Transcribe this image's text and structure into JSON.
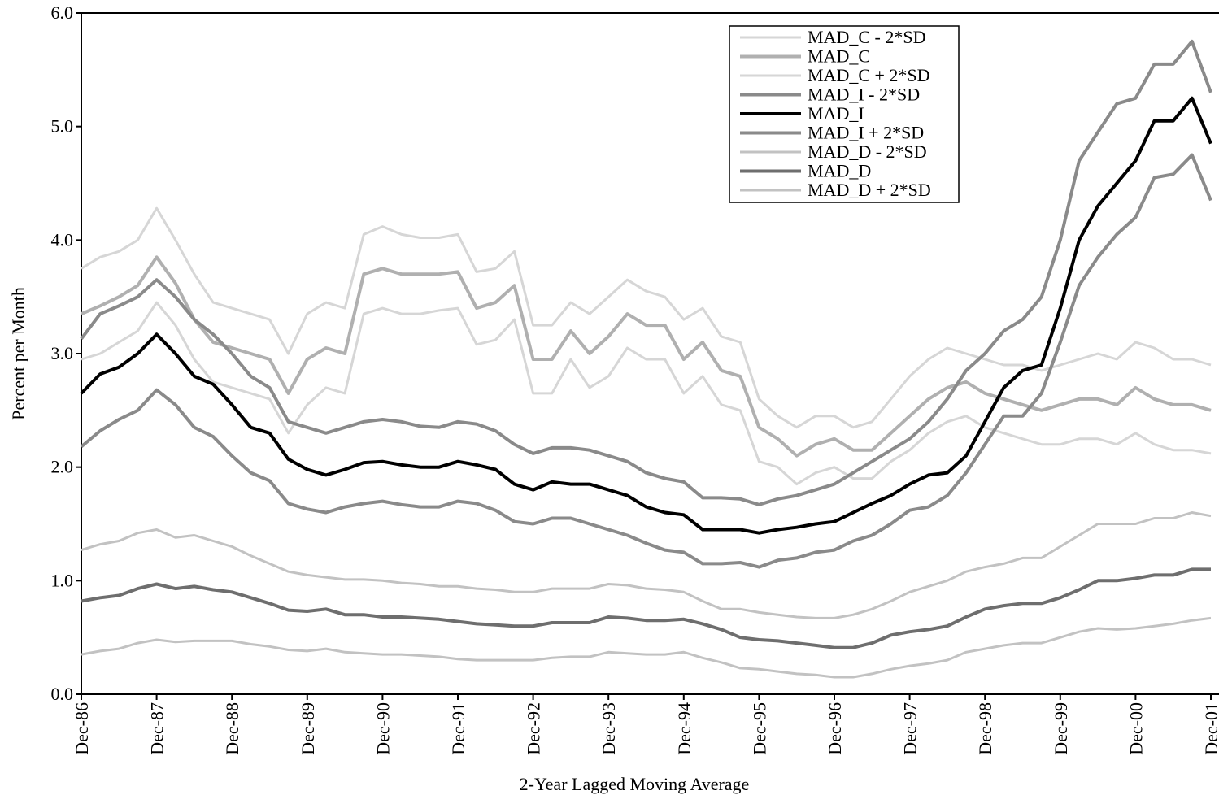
{
  "chart_data": {
    "type": "line",
    "x_label": "2-Year Lagged Moving Average",
    "y_label": "Percent per Month",
    "categories": [
      "Dec-86",
      null,
      null,
      null,
      "Dec-87",
      null,
      null,
      null,
      "Dec-88",
      null,
      null,
      null,
      "Dec-89",
      null,
      null,
      null,
      "Dec-90",
      null,
      null,
      null,
      "Dec-91",
      null,
      null,
      null,
      "Dec-92",
      null,
      null,
      null,
      "Dec-93",
      null,
      null,
      null,
      "Dec-94",
      null,
      null,
      null,
      "Dec-95",
      null,
      null,
      null,
      "Dec-96",
      null,
      null,
      null,
      "Dec-97",
      null,
      null,
      null,
      "Dec-98",
      null,
      null,
      null,
      "Dec-99",
      null,
      null,
      null,
      "Dec-00",
      null,
      null,
      null,
      "Dec-01"
    ],
    "ylim": [
      0,
      6
    ],
    "yticks": [
      {
        "value": 0,
        "label": "0.0"
      },
      {
        "value": 1,
        "label": "1.0"
      },
      {
        "value": 2,
        "label": "2.0"
      },
      {
        "value": 3,
        "label": "3.0"
      },
      {
        "value": 4,
        "label": "4.0"
      },
      {
        "value": 5,
        "label": "5.0"
      },
      {
        "value": 6,
        "label": "6.0"
      }
    ],
    "legend": "top-right",
    "series": [
      {
        "name": "MAD_C - 2*SD",
        "color": "#d6d6d6",
        "values": [
          2.95,
          3.0,
          3.1,
          3.2,
          3.45,
          3.25,
          2.95,
          2.75,
          2.7,
          2.65,
          2.6,
          2.3,
          2.55,
          2.7,
          2.65,
          3.35,
          3.4,
          3.35,
          3.35,
          3.38,
          3.4,
          3.08,
          3.12,
          3.3,
          2.65,
          2.65,
          2.95,
          2.7,
          2.8,
          3.05,
          2.95,
          2.95,
          2.65,
          2.8,
          2.55,
          2.5,
          2.05,
          2.0,
          1.85,
          1.95,
          2.0,
          1.9,
          1.9,
          2.05,
          2.15,
          2.3,
          2.4,
          2.45,
          2.35,
          2.3,
          2.25,
          2.2,
          2.2,
          2.25,
          2.25,
          2.2,
          2.3,
          2.2,
          2.15,
          2.15,
          2.12
        ]
      },
      {
        "name": "MAD_C",
        "color": "#b0b0b0",
        "values": [
          3.35,
          3.42,
          3.5,
          3.6,
          3.85,
          3.62,
          3.3,
          3.1,
          3.05,
          3.0,
          2.95,
          2.65,
          2.95,
          3.05,
          3.0,
          3.7,
          3.75,
          3.7,
          3.7,
          3.7,
          3.72,
          3.4,
          3.45,
          3.6,
          2.95,
          2.95,
          3.2,
          3.0,
          3.15,
          3.35,
          3.25,
          3.25,
          2.95,
          3.1,
          2.85,
          2.8,
          2.35,
          2.25,
          2.1,
          2.2,
          2.25,
          2.15,
          2.15,
          2.3,
          2.45,
          2.6,
          2.7,
          2.75,
          2.65,
          2.6,
          2.55,
          2.5,
          2.55,
          2.6,
          2.6,
          2.55,
          2.7,
          2.6,
          2.55,
          2.55,
          2.5
        ]
      },
      {
        "name": "MAD_C + 2*SD",
        "color": "#d6d6d6",
        "values": [
          3.75,
          3.85,
          3.9,
          4.0,
          4.28,
          4.0,
          3.7,
          3.45,
          3.4,
          3.35,
          3.3,
          3.0,
          3.35,
          3.45,
          3.4,
          4.05,
          4.12,
          4.05,
          4.02,
          4.02,
          4.05,
          3.72,
          3.75,
          3.9,
          3.25,
          3.25,
          3.45,
          3.35,
          3.5,
          3.65,
          3.55,
          3.5,
          3.3,
          3.4,
          3.15,
          3.1,
          2.6,
          2.45,
          2.35,
          2.45,
          2.45,
          2.35,
          2.4,
          2.6,
          2.8,
          2.95,
          3.05,
          3.0,
          2.95,
          2.9,
          2.9,
          2.85,
          2.9,
          2.95,
          3.0,
          2.95,
          3.1,
          3.05,
          2.95,
          2.95,
          2.9
        ]
      },
      {
        "name": "MAD_I - 2*SD",
        "color": "#8a8a8a",
        "values": [
          2.18,
          2.32,
          2.42,
          2.5,
          2.68,
          2.55,
          2.35,
          2.27,
          2.1,
          1.95,
          1.88,
          1.68,
          1.63,
          1.6,
          1.65,
          1.68,
          1.7,
          1.67,
          1.65,
          1.65,
          1.7,
          1.68,
          1.62,
          1.52,
          1.5,
          1.55,
          1.55,
          1.5,
          1.45,
          1.4,
          1.33,
          1.27,
          1.25,
          1.15,
          1.15,
          1.16,
          1.12,
          1.18,
          1.2,
          1.25,
          1.27,
          1.35,
          1.4,
          1.5,
          1.62,
          1.65,
          1.75,
          1.95,
          2.2,
          2.45,
          2.45,
          2.65,
          3.1,
          3.6,
          3.85,
          4.05,
          4.2,
          4.55,
          4.58,
          4.75,
          4.35
        ]
      },
      {
        "name": "MAD_I",
        "color": "#000000",
        "values": [
          2.65,
          2.82,
          2.88,
          3.0,
          3.17,
          3.0,
          2.8,
          2.73,
          2.55,
          2.35,
          2.3,
          2.07,
          1.98,
          1.93,
          1.98,
          2.04,
          2.05,
          2.02,
          2.0,
          2.0,
          2.05,
          2.02,
          1.98,
          1.85,
          1.8,
          1.87,
          1.85,
          1.85,
          1.8,
          1.75,
          1.65,
          1.6,
          1.58,
          1.45,
          1.45,
          1.45,
          1.42,
          1.45,
          1.47,
          1.5,
          1.52,
          1.6,
          1.68,
          1.75,
          1.85,
          1.93,
          1.95,
          2.1,
          2.4,
          2.7,
          2.85,
          2.9,
          3.4,
          4.0,
          4.3,
          4.5,
          4.7,
          5.05,
          5.05,
          5.25,
          4.85
        ]
      },
      {
        "name": "MAD_I + 2*SD",
        "color": "#8a8a8a",
        "values": [
          3.13,
          3.35,
          3.42,
          3.5,
          3.65,
          3.5,
          3.3,
          3.17,
          3.0,
          2.8,
          2.7,
          2.4,
          2.35,
          2.3,
          2.35,
          2.4,
          2.42,
          2.4,
          2.36,
          2.35,
          2.4,
          2.38,
          2.32,
          2.2,
          2.12,
          2.17,
          2.17,
          2.15,
          2.1,
          2.05,
          1.95,
          1.9,
          1.87,
          1.73,
          1.73,
          1.72,
          1.67,
          1.72,
          1.75,
          1.8,
          1.85,
          1.95,
          2.05,
          2.15,
          2.25,
          2.4,
          2.6,
          2.85,
          3.0,
          3.2,
          3.3,
          3.5,
          4.0,
          4.7,
          4.95,
          5.2,
          5.25,
          5.55,
          5.55,
          5.75,
          5.3
        ]
      },
      {
        "name": "MAD_D - 2*SD",
        "color": "#c2c2c2",
        "values": [
          0.35,
          0.38,
          0.4,
          0.45,
          0.48,
          0.46,
          0.47,
          0.47,
          0.47,
          0.44,
          0.42,
          0.39,
          0.38,
          0.4,
          0.37,
          0.36,
          0.35,
          0.35,
          0.34,
          0.33,
          0.31,
          0.3,
          0.3,
          0.3,
          0.3,
          0.32,
          0.33,
          0.33,
          0.37,
          0.36,
          0.35,
          0.35,
          0.37,
          0.32,
          0.28,
          0.23,
          0.22,
          0.2,
          0.18,
          0.17,
          0.15,
          0.15,
          0.18,
          0.22,
          0.25,
          0.27,
          0.3,
          0.37,
          0.4,
          0.43,
          0.45,
          0.45,
          0.5,
          0.55,
          0.58,
          0.57,
          0.58,
          0.6,
          0.62,
          0.65,
          0.67
        ]
      },
      {
        "name": "MAD_D",
        "color": "#6e6e6e",
        "values": [
          0.82,
          0.85,
          0.87,
          0.93,
          0.97,
          0.93,
          0.95,
          0.92,
          0.9,
          0.85,
          0.8,
          0.74,
          0.73,
          0.75,
          0.7,
          0.7,
          0.68,
          0.68,
          0.67,
          0.66,
          0.64,
          0.62,
          0.61,
          0.6,
          0.6,
          0.63,
          0.63,
          0.63,
          0.68,
          0.67,
          0.65,
          0.65,
          0.66,
          0.62,
          0.57,
          0.5,
          0.48,
          0.47,
          0.45,
          0.43,
          0.41,
          0.41,
          0.45,
          0.52,
          0.55,
          0.57,
          0.6,
          0.68,
          0.75,
          0.78,
          0.8,
          0.8,
          0.85,
          0.92,
          1.0,
          1.0,
          1.02,
          1.05,
          1.05,
          1.1,
          1.1
        ]
      },
      {
        "name": "MAD_D + 2*SD",
        "color": "#c2c2c2",
        "values": [
          1.27,
          1.32,
          1.35,
          1.42,
          1.45,
          1.38,
          1.4,
          1.35,
          1.3,
          1.22,
          1.15,
          1.08,
          1.05,
          1.03,
          1.01,
          1.01,
          1.0,
          0.98,
          0.97,
          0.95,
          0.95,
          0.93,
          0.92,
          0.9,
          0.9,
          0.93,
          0.93,
          0.93,
          0.97,
          0.96,
          0.93,
          0.92,
          0.9,
          0.82,
          0.75,
          0.75,
          0.72,
          0.7,
          0.68,
          0.67,
          0.67,
          0.7,
          0.75,
          0.82,
          0.9,
          0.95,
          1.0,
          1.08,
          1.12,
          1.15,
          1.2,
          1.2,
          1.3,
          1.4,
          1.5,
          1.5,
          1.5,
          1.55,
          1.55,
          1.6,
          1.57
        ]
      }
    ]
  }
}
